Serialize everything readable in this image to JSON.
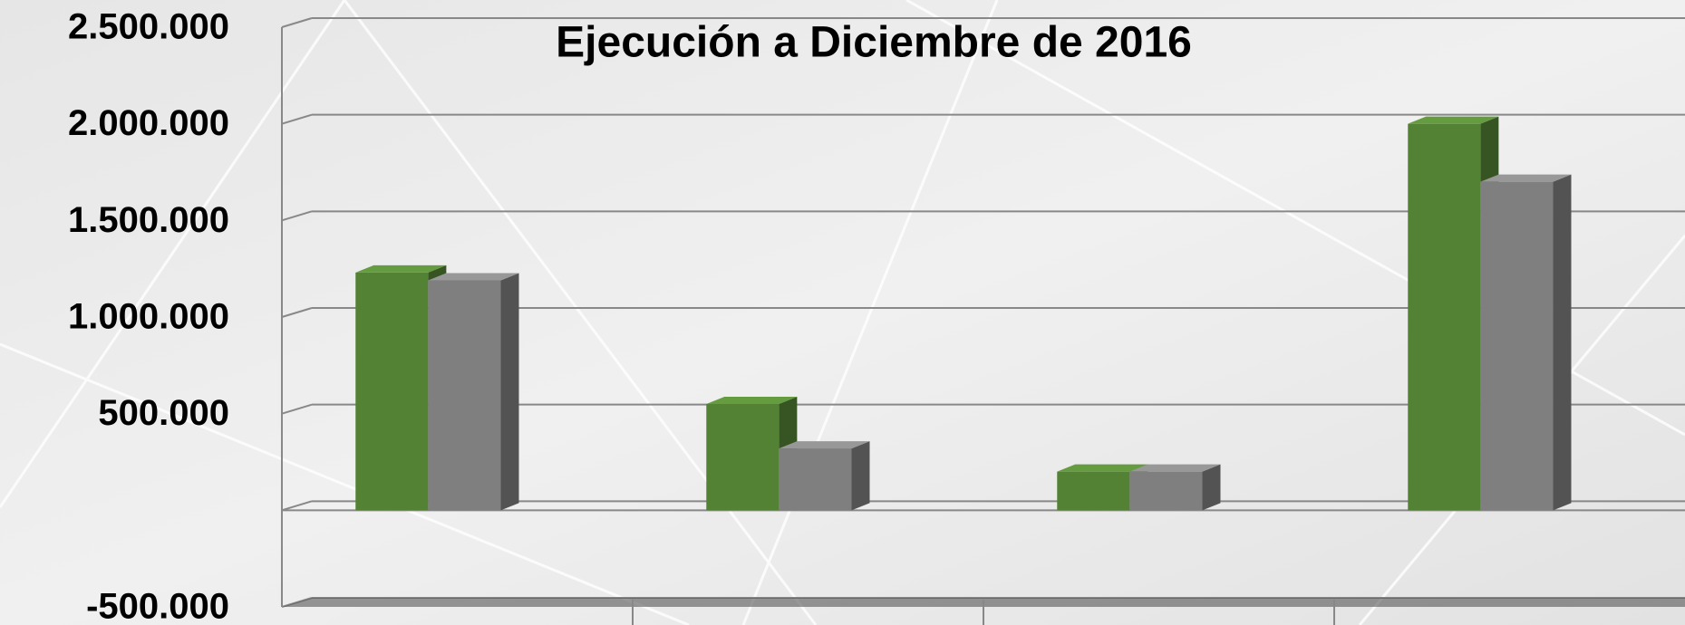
{
  "chart_data": {
    "type": "bar3d",
    "title": "Ejecución a Diciembre de 2016",
    "categories": [
      null,
      null,
      null,
      null
    ],
    "series": [
      {
        "color": "#548235",
        "values": [
          1230000,
          550000,
          200000,
          2000000
        ]
      },
      {
        "color": "#7f7f7f",
        "values": [
          1190000,
          320000,
          200000,
          1700000
        ]
      }
    ],
    "ylim": [
      -500000,
      2500000
    ],
    "yticks": [
      {
        "value": -500000,
        "label": "-500.000"
      },
      {
        "value": 500000,
        "label": "500.000"
      },
      {
        "value": 1000000,
        "label": "1.000.000"
      },
      {
        "value": 1500000,
        "label": "1.500.000"
      },
      {
        "value": 2000000,
        "label": "2.000.000"
      },
      {
        "value": 2500000,
        "label": "2.500.000"
      }
    ],
    "grid": true
  }
}
